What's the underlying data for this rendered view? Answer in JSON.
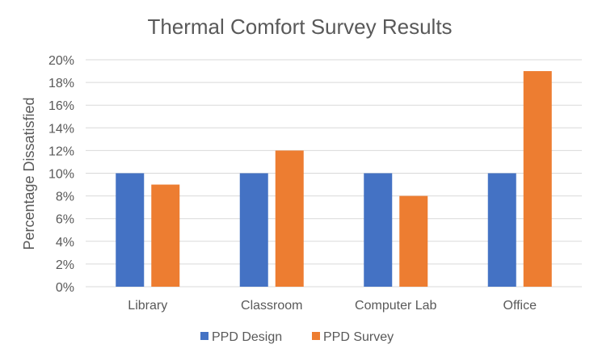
{
  "chart_data": {
    "type": "bar",
    "title": "Thermal Comfort Survey Results",
    "ylabel": "Percentage Dissatisfied",
    "xlabel": "",
    "categories": [
      "Library",
      "Classroom",
      "Computer Lab",
      "Office"
    ],
    "series": [
      {
        "name": "PPD Design",
        "values": [
          10,
          10,
          10,
          10
        ],
        "color": "#4472c4"
      },
      {
        "name": "PPD Survey",
        "values": [
          9,
          12,
          8,
          19
        ],
        "color": "#ed7d31"
      }
    ],
    "ylim": [
      0,
      20
    ],
    "yticks": [
      "0%",
      "2%",
      "4%",
      "6%",
      "8%",
      "10%",
      "12%",
      "14%",
      "16%",
      "18%",
      "20%"
    ],
    "grid": true,
    "legend_position": "bottom"
  }
}
